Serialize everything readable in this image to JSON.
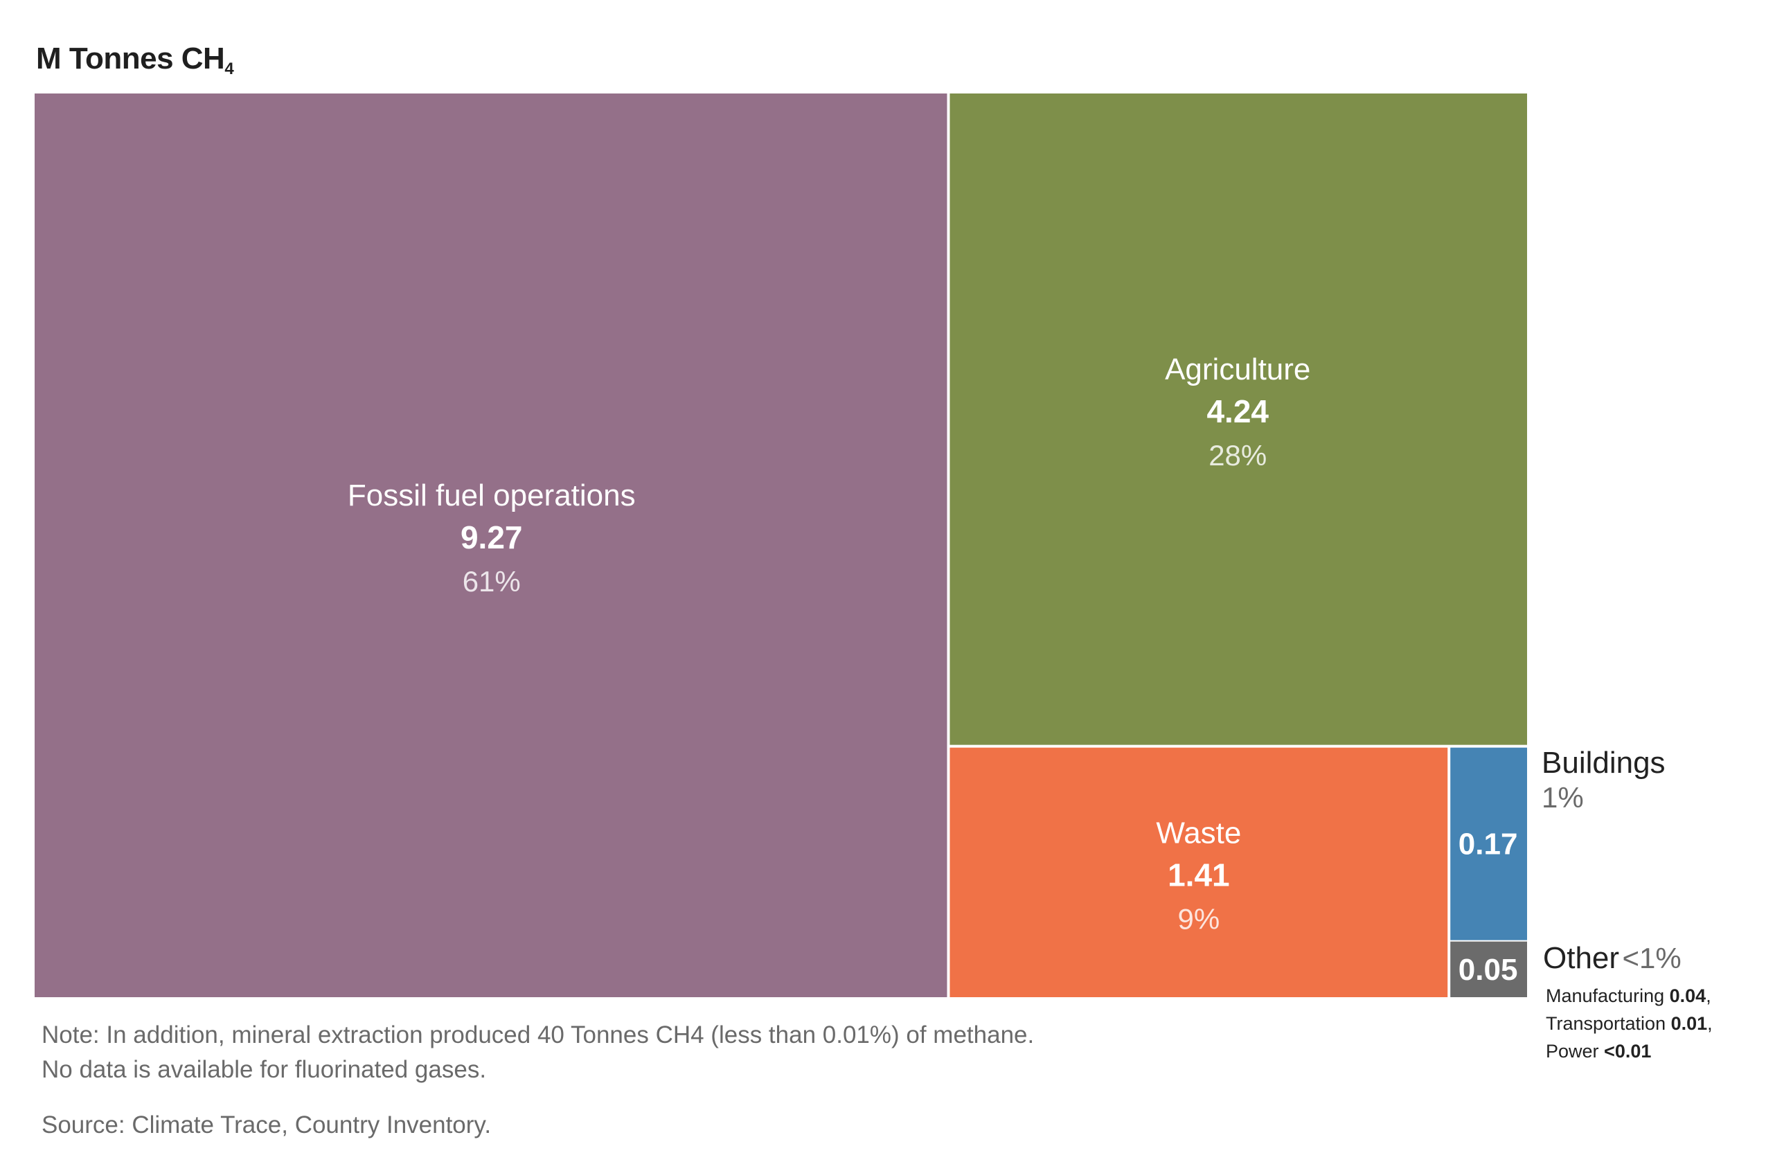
{
  "chart_data": {
    "type": "treemap",
    "unit_title": "M Tonnes CH",
    "unit_subscript": "4",
    "segments": [
      {
        "name": "Fossil fuel operations",
        "value": 9.27,
        "value_label": "9.27",
        "percent_label": "61%",
        "color": "#947089"
      },
      {
        "name": "Agriculture",
        "value": 4.24,
        "value_label": "4.24",
        "percent_label": "28%",
        "color": "#7e8f4a"
      },
      {
        "name": "Waste",
        "value": 1.41,
        "value_label": "1.41",
        "percent_label": "9%",
        "color": "#f07247"
      },
      {
        "name": "Buildings",
        "value": 0.17,
        "value_label": "0.17",
        "percent_label": "1%",
        "color": "#4584b4"
      },
      {
        "name": "Other",
        "value": 0.05,
        "value_label": "0.05",
        "percent_label": "<1%",
        "color": "#6b6b6b"
      }
    ],
    "other_breakdown": [
      {
        "name": "Manufacturing",
        "value_label": "0.04",
        "sep": ","
      },
      {
        "name": "Transportation",
        "value_label": "0.01",
        "sep": ","
      },
      {
        "name": "Power",
        "value_label": "<0.01",
        "sep": ""
      }
    ]
  },
  "note_lines": [
    "Note: In addition, mineral extraction produced 40 Tonnes CH4 (less than 0.01%) of methane.",
    "No data is available for fluorinated gases."
  ],
  "source": "Source: Climate Trace, Country Inventory."
}
